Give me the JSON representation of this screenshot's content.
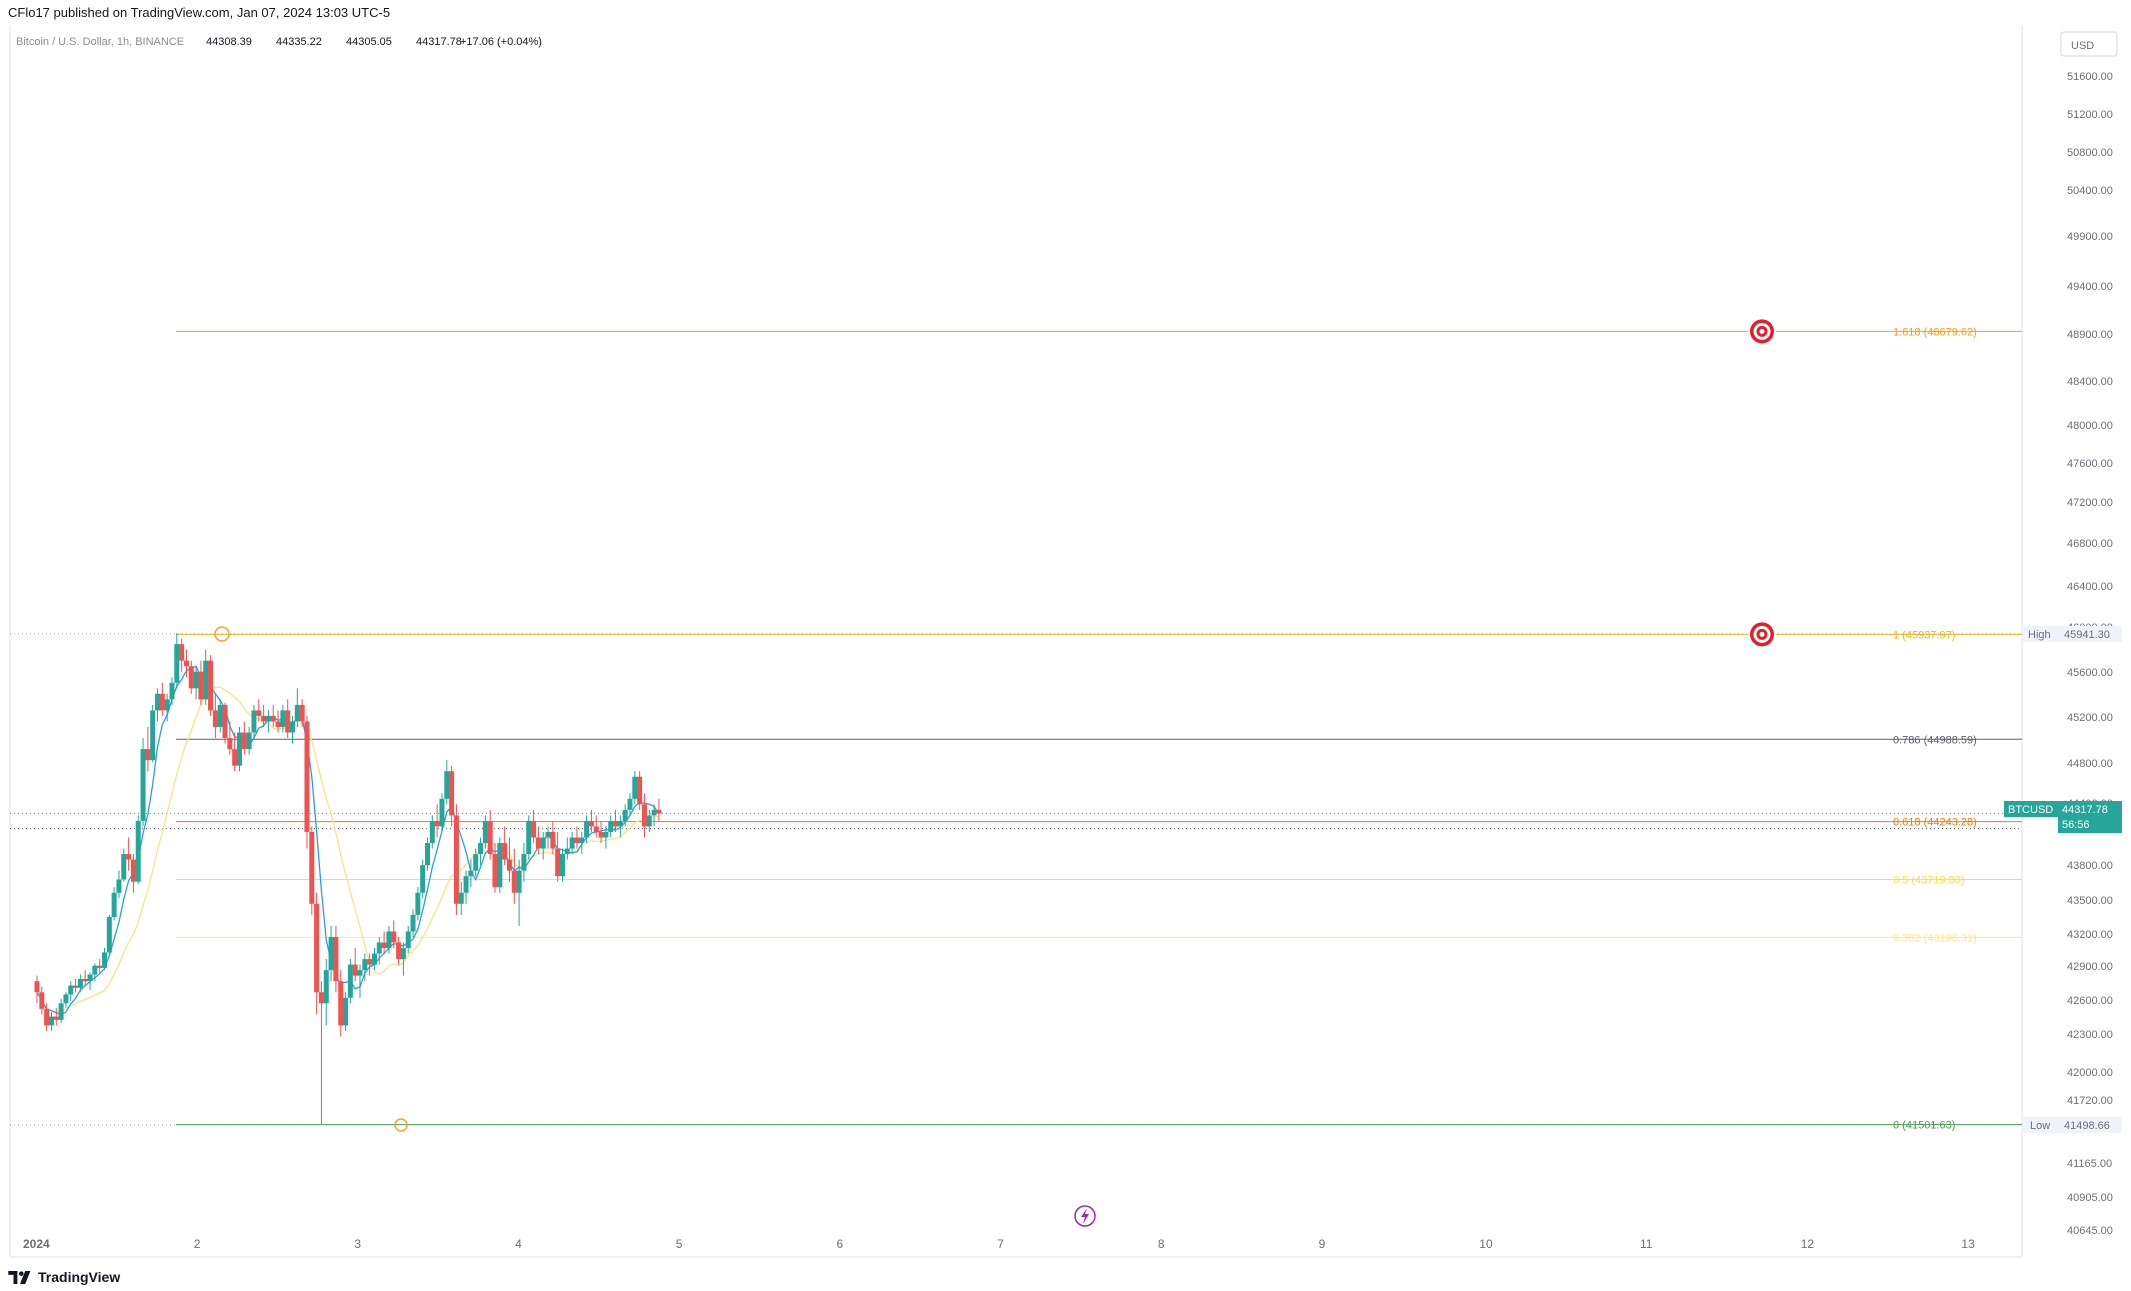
{
  "header": {
    "published": "CFlo17 published on TradingView.com, Jan 07, 2024 13:03 UTC-5"
  },
  "legend": {
    "symbol": "Bitcoin / U.S. Dollar, 1h, BINANCE",
    "open": "44308.39",
    "high": "44335.22",
    "low": "44305.05",
    "close": "44317.78",
    "change": "+17.06 (+0.04%)"
  },
  "price_axis": {
    "currency": "USD",
    "ticks": [
      "51600.00",
      "51200.00",
      "50800.00",
      "50400.00",
      "49900.00",
      "49400.00",
      "48900.00",
      "48400.00",
      "48000.00",
      "47600.00",
      "47200.00",
      "46800.00",
      "46400.00",
      "46000.00",
      "45600.00",
      "45200.00",
      "44800.00",
      "44400.00",
      "43800.00",
      "43500.00",
      "43200.00",
      "42900.00",
      "42600.00",
      "42300.00",
      "42000.00",
      "41720.00",
      "41165.00",
      "40905.00",
      "40645.00"
    ],
    "current_symbol": "BTCUSD",
    "current_price": "44317.78",
    "countdown": "56:56",
    "high_label": "High",
    "high_value": "45941.30",
    "low_label": "Low",
    "low_value": "41498.66"
  },
  "time_axis": {
    "ticks": [
      "2024",
      "2",
      "3",
      "4",
      "5",
      "6",
      "7",
      "8",
      "9",
      "10",
      "11",
      "12",
      "13"
    ]
  },
  "fib_levels": [
    {
      "label": "1.618 (48679.62)",
      "price": 48679.62,
      "color": "#f59f1a"
    },
    {
      "label": "1 (45937.97)",
      "price": 45937.97,
      "color": "#f5b800"
    },
    {
      "label": "0.786 (44988.59)",
      "price": 44988.59,
      "color": "#5d606b"
    },
    {
      "label": "0.618 (44243.28)",
      "price": 44243.28,
      "color": "#f57c00"
    },
    {
      "label": "0.5 (43719.80)",
      "price": 43719.8,
      "color": "#f7e33a"
    },
    {
      "label": "0.382 (43196.31)",
      "price": 43196.31,
      "color": "#fbe98b"
    },
    {
      "label": "0 (41501.63)",
      "price": 41501.63,
      "color": "#43a047"
    }
  ],
  "colors": {
    "up": "#26a69a",
    "down": "#ef5350",
    "ma_fast": "#2f9be8",
    "ma_slow": "#f8e38a",
    "target": "#e81c2a",
    "badge": "#26a69a"
  },
  "chart_data": {
    "type": "candlestick",
    "interval": "1h",
    "x_range_days": [
      1,
      13.3
    ],
    "ylim": [
      40645,
      51800
    ],
    "candles": [
      [
        1.0,
        42800,
        42850,
        42600,
        42700
      ],
      [
        1.03,
        42700,
        42750,
        42500,
        42550
      ],
      [
        1.06,
        42550,
        42600,
        42350,
        42400
      ],
      [
        1.09,
        42400,
        42520,
        42350,
        42480
      ],
      [
        1.12,
        42480,
        42560,
        42400,
        42450
      ],
      [
        1.15,
        42450,
        42640,
        42420,
        42600
      ],
      [
        1.18,
        42600,
        42700,
        42560,
        42680
      ],
      [
        1.21,
        42680,
        42800,
        42620,
        42760
      ],
      [
        1.24,
        42760,
        42820,
        42700,
        42740
      ],
      [
        1.27,
        42740,
        42860,
        42700,
        42820
      ],
      [
        1.3,
        42820,
        42900,
        42760,
        42800
      ],
      [
        1.33,
        42800,
        42880,
        42720,
        42860
      ],
      [
        1.36,
        42860,
        42960,
        42800,
        42940
      ],
      [
        1.39,
        42940,
        43000,
        42880,
        42920
      ],
      [
        1.42,
        42920,
        43100,
        42900,
        43060
      ],
      [
        1.45,
        43060,
        43400,
        43040,
        43380
      ],
      [
        1.48,
        43380,
        43650,
        43350,
        43600
      ],
      [
        1.51,
        43600,
        43800,
        43550,
        43720
      ],
      [
        1.54,
        43720,
        44000,
        43700,
        43950
      ],
      [
        1.57,
        43950,
        44100,
        43800,
        43900
      ],
      [
        1.6,
        43900,
        43950,
        43600,
        43700
      ],
      [
        1.63,
        43700,
        44300,
        43680,
        44250
      ],
      [
        1.66,
        44250,
        45000,
        44200,
        44900
      ],
      [
        1.69,
        44900,
        45100,
        44700,
        44800
      ],
      [
        1.72,
        44800,
        45300,
        44780,
        45250
      ],
      [
        1.75,
        45250,
        45450,
        45150,
        45400
      ],
      [
        1.78,
        45400,
        45500,
        45200,
        45250
      ],
      [
        1.81,
        45250,
        45400,
        45150,
        45350
      ],
      [
        1.84,
        45350,
        45550,
        45300,
        45500
      ],
      [
        1.87,
        45500,
        45950,
        45450,
        45850
      ],
      [
        1.9,
        45850,
        45900,
        45600,
        45700
      ],
      [
        1.93,
        45700,
        45800,
        45550,
        45650
      ],
      [
        1.96,
        45650,
        45700,
        45400,
        45450
      ],
      [
        1.99,
        45450,
        45650,
        45350,
        45600
      ],
      [
        2.02,
        45600,
        45700,
        45300,
        45350
      ],
      [
        2.05,
        45350,
        45800,
        45300,
        45700
      ],
      [
        2.08,
        45700,
        45750,
        45200,
        45250
      ],
      [
        2.11,
        45250,
        45400,
        45000,
        45100
      ],
      [
        2.14,
        45100,
        45350,
        45050,
        45300
      ],
      [
        2.17,
        45300,
        45320,
        44950,
        45000
      ],
      [
        2.2,
        45000,
        45150,
        44850,
        44900
      ],
      [
        2.23,
        44900,
        45050,
        44700,
        44750
      ],
      [
        2.26,
        44750,
        45100,
        44700,
        45050
      ],
      [
        2.29,
        45050,
        45150,
        44850,
        44900
      ],
      [
        2.32,
        44900,
        45100,
        44850,
        45050
      ],
      [
        2.35,
        45050,
        45300,
        45000,
        45250
      ],
      [
        2.38,
        45250,
        45350,
        45150,
        45200
      ],
      [
        2.41,
        45200,
        45300,
        45100,
        45150
      ],
      [
        2.44,
        45150,
        45250,
        45050,
        45200
      ],
      [
        2.47,
        45200,
        45300,
        45100,
        45150
      ],
      [
        2.5,
        45150,
        45250,
        45050,
        45100
      ],
      [
        2.53,
        45100,
        45300,
        45050,
        45250
      ],
      [
        2.56,
        45250,
        45350,
        45000,
        45050
      ],
      [
        2.59,
        45050,
        45200,
        44950,
        45150
      ],
      [
        2.62,
        45150,
        45450,
        45100,
        45300
      ],
      [
        2.65,
        45300,
        45350,
        45100,
        45150
      ],
      [
        2.68,
        45150,
        45200,
        44000,
        44150
      ],
      [
        2.71,
        44150,
        44200,
        43400,
        43500
      ],
      [
        2.74,
        43500,
        43600,
        42500,
        42700
      ],
      [
        2.77,
        42700,
        42800,
        41500,
        42600
      ],
      [
        2.8,
        42600,
        43000,
        42400,
        42900
      ],
      [
        2.83,
        42900,
        43300,
        42800,
        43200
      ],
      [
        2.86,
        43200,
        43300,
        42700,
        42800
      ],
      [
        2.89,
        42800,
        42900,
        42300,
        42400
      ],
      [
        2.92,
        42400,
        42700,
        42350,
        42650
      ],
      [
        2.95,
        42650,
        43000,
        42600,
        42950
      ],
      [
        2.98,
        42950,
        43100,
        42800,
        42850
      ],
      [
        3.01,
        42850,
        42950,
        42650,
        42900
      ],
      [
        3.04,
        42900,
        43050,
        42800,
        43000
      ],
      [
        3.07,
        43000,
        43050,
        42850,
        42950
      ],
      [
        3.1,
        42950,
        43100,
        42900,
        43050
      ],
      [
        3.13,
        43050,
        43200,
        42950,
        43150
      ],
      [
        3.16,
        43150,
        43250,
        43050,
        43100
      ],
      [
        3.19,
        43100,
        43300,
        43050,
        43250
      ],
      [
        3.22,
        43250,
        43350,
        43100,
        43150
      ],
      [
        3.25,
        43150,
        43200,
        42950,
        43000
      ],
      [
        3.28,
        43000,
        43150,
        42850,
        43100
      ],
      [
        3.31,
        43100,
        43300,
        43050,
        43250
      ],
      [
        3.34,
        43250,
        43450,
        43200,
        43400
      ],
      [
        3.37,
        43400,
        43650,
        43350,
        43600
      ],
      [
        3.4,
        43600,
        43900,
        43550,
        43850
      ],
      [
        3.43,
        43850,
        44100,
        43800,
        44050
      ],
      [
        3.46,
        44050,
        44300,
        44000,
        44250
      ],
      [
        3.49,
        44250,
        44400,
        44100,
        44200
      ],
      [
        3.52,
        44200,
        44500,
        44150,
        44450
      ],
      [
        3.55,
        44450,
        44800,
        44400,
        44700
      ],
      [
        3.58,
        44700,
        44750,
        44200,
        44300
      ],
      [
        3.61,
        44300,
        44400,
        43400,
        43500
      ],
      [
        3.64,
        43500,
        43700,
        43400,
        43600
      ],
      [
        3.67,
        43600,
        43800,
        43500,
        43750
      ],
      [
        3.7,
        43750,
        43900,
        43650,
        43800
      ],
      [
        3.73,
        43800,
        44000,
        43750,
        43950
      ],
      [
        3.76,
        43950,
        44100,
        43850,
        44050
      ],
      [
        3.79,
        44050,
        44300,
        44000,
        44250
      ],
      [
        3.82,
        44250,
        44350,
        43900,
        43950
      ],
      [
        3.85,
        43950,
        44050,
        43600,
        43650
      ],
      [
        3.88,
        43650,
        44100,
        43600,
        44050
      ],
      [
        3.91,
        44050,
        44200,
        43850,
        43900
      ],
      [
        3.94,
        43900,
        44100,
        43700,
        43800
      ],
      [
        3.97,
        43800,
        44000,
        43500,
        43600
      ],
      [
        4.0,
        43600,
        43900,
        43300,
        43800
      ],
      [
        4.03,
        43800,
        44050,
        43700,
        43950
      ],
      [
        4.06,
        43950,
        44300,
        43900,
        44250
      ],
      [
        4.09,
        44250,
        44350,
        44050,
        44100
      ],
      [
        4.12,
        44100,
        44200,
        43950,
        44000
      ],
      [
        4.15,
        44000,
        44150,
        43900,
        44100
      ],
      [
        4.18,
        44100,
        44200,
        44000,
        44150
      ],
      [
        4.21,
        44150,
        44250,
        43950,
        44000
      ],
      [
        4.24,
        44000,
        44150,
        43700,
        43750
      ],
      [
        4.27,
        43750,
        44000,
        43700,
        43950
      ],
      [
        4.3,
        43950,
        44100,
        43900,
        44000
      ],
      [
        4.33,
        44000,
        44150,
        43950,
        44100
      ],
      [
        4.36,
        44100,
        44200,
        44000,
        44050
      ],
      [
        4.39,
        44050,
        44150,
        43950,
        44100
      ],
      [
        4.42,
        44100,
        44300,
        44050,
        44250
      ],
      [
        4.45,
        44250,
        44350,
        44150,
        44200
      ],
      [
        4.48,
        44200,
        44300,
        44100,
        44150
      ],
      [
        4.51,
        44150,
        44250,
        44050,
        44100
      ],
      [
        4.54,
        44100,
        44200,
        44000,
        44150
      ],
      [
        4.57,
        44150,
        44300,
        44100,
        44250
      ],
      [
        4.6,
        44250,
        44350,
        44150,
        44200
      ],
      [
        4.63,
        44200,
        44300,
        44100,
        44250
      ],
      [
        4.66,
        44250,
        44400,
        44200,
        44350
      ],
      [
        4.69,
        44350,
        44500,
        44300,
        44450
      ],
      [
        4.72,
        44450,
        44700,
        44400,
        44650
      ],
      [
        4.75,
        44650,
        44700,
        44350,
        44400
      ],
      [
        4.78,
        44400,
        44500,
        44100,
        44200
      ],
      [
        4.81,
        44200,
        44350,
        44150,
        44300
      ],
      [
        4.84,
        44300,
        44400,
        44200,
        44350
      ],
      [
        4.87,
        44350,
        44450,
        44250,
        44317.78
      ]
    ],
    "x": [
      1,
      2,
      3,
      4,
      5,
      6,
      7,
      8,
      9,
      10,
      11,
      12,
      13
    ]
  }
}
